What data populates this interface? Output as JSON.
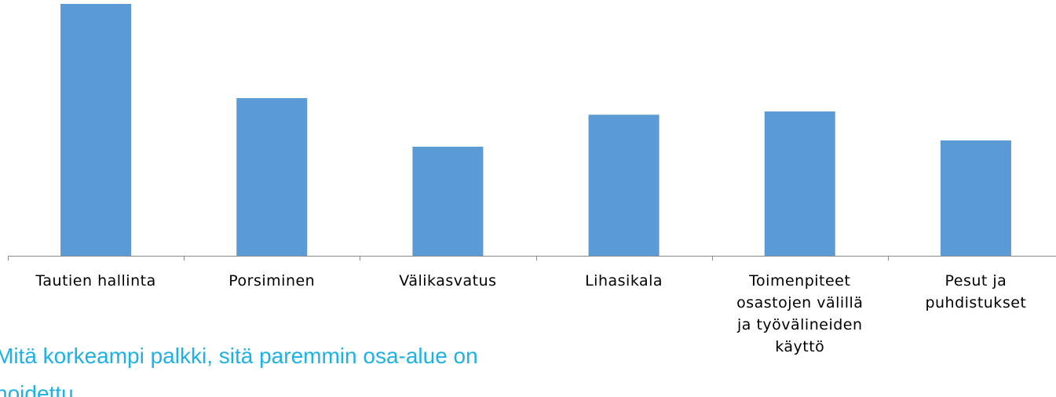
{
  "chart_data": {
    "type": "bar",
    "categories": [
      "Tautien hallinta",
      "Porsiminen",
      "Välikasvatus",
      "Lihasikala",
      "Toimenpiteet osastojen välillä ja työvälineiden käyttö",
      "Pesut ja puhdistukset"
    ],
    "values": [
      100,
      62.6,
      43.3,
      56,
      57.3,
      45.8
    ],
    "color": "#5b9bd5",
    "ylim": [
      0,
      100
    ],
    "annotation": "Mitä korkeampi palkki, sitä paremmin osa-alue on hoidettu"
  }
}
